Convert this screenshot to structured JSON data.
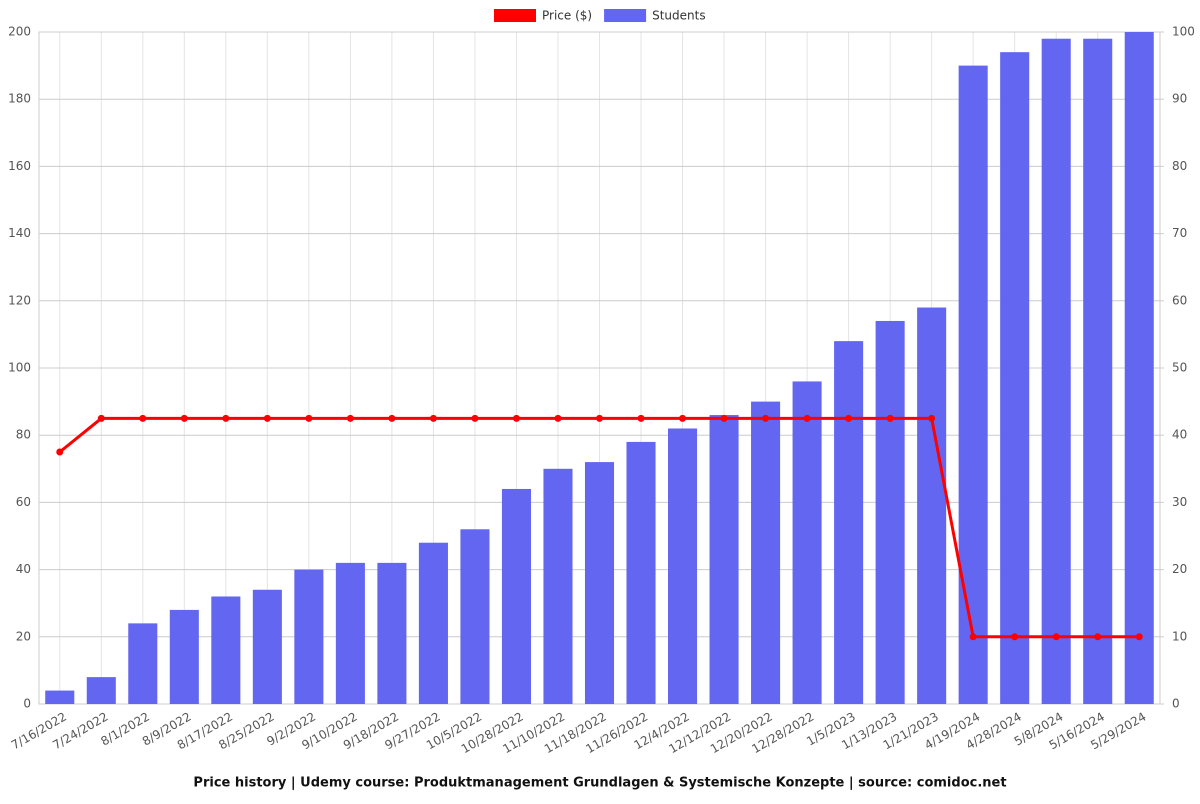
{
  "chart_data": {
    "type": "bar-line",
    "title": "Price history | Udemy course: Produktmanagement Grundlagen & Systemische Konzepte | source: comidoc.net",
    "categories": [
      "7/16/2022",
      "7/24/2022",
      "8/1/2022",
      "8/9/2022",
      "8/17/2022",
      "8/25/2022",
      "9/2/2022",
      "9/10/2022",
      "9/18/2022",
      "9/27/2022",
      "10/5/2022",
      "10/28/2022",
      "11/10/2022",
      "11/18/2022",
      "11/26/2022",
      "12/4/2022",
      "12/12/2022",
      "12/20/2022",
      "12/28/2022",
      "1/5/2023",
      "1/13/2023",
      "1/21/2023",
      "4/19/2024",
      "4/28/2024",
      "5/8/2024",
      "5/16/2024",
      "5/29/2024"
    ],
    "series": [
      {
        "name": "Price ($)",
        "color": "#ff0000",
        "kind": "line",
        "axis": "y2",
        "values": [
          37.5,
          42.5,
          42.5,
          42.5,
          42.5,
          42.5,
          42.5,
          42.5,
          42.5,
          42.5,
          42.5,
          42.5,
          42.5,
          42.5,
          42.5,
          42.5,
          42.5,
          42.5,
          42.5,
          42.5,
          42.5,
          42.5,
          10,
          10,
          10,
          10,
          10
        ]
      },
      {
        "name": "Students",
        "color": "#6366f1",
        "kind": "bar",
        "values": [
          4,
          8,
          24,
          28,
          32,
          34,
          40,
          42,
          42,
          48,
          52,
          64,
          70,
          72,
          78,
          82,
          86,
          90,
          96,
          108,
          114,
          118,
          190,
          194,
          198,
          198,
          200
        ]
      }
    ],
    "ylim": [
      0,
      200
    ],
    "yticks": [
      0,
      20,
      40,
      60,
      80,
      100,
      120,
      140,
      160,
      180,
      200
    ],
    "y2lim": [
      0,
      100
    ],
    "y2ticks": [
      0,
      10,
      20,
      30,
      40,
      50,
      60,
      70,
      80,
      90,
      100
    ],
    "grid": true,
    "legend": "top"
  }
}
